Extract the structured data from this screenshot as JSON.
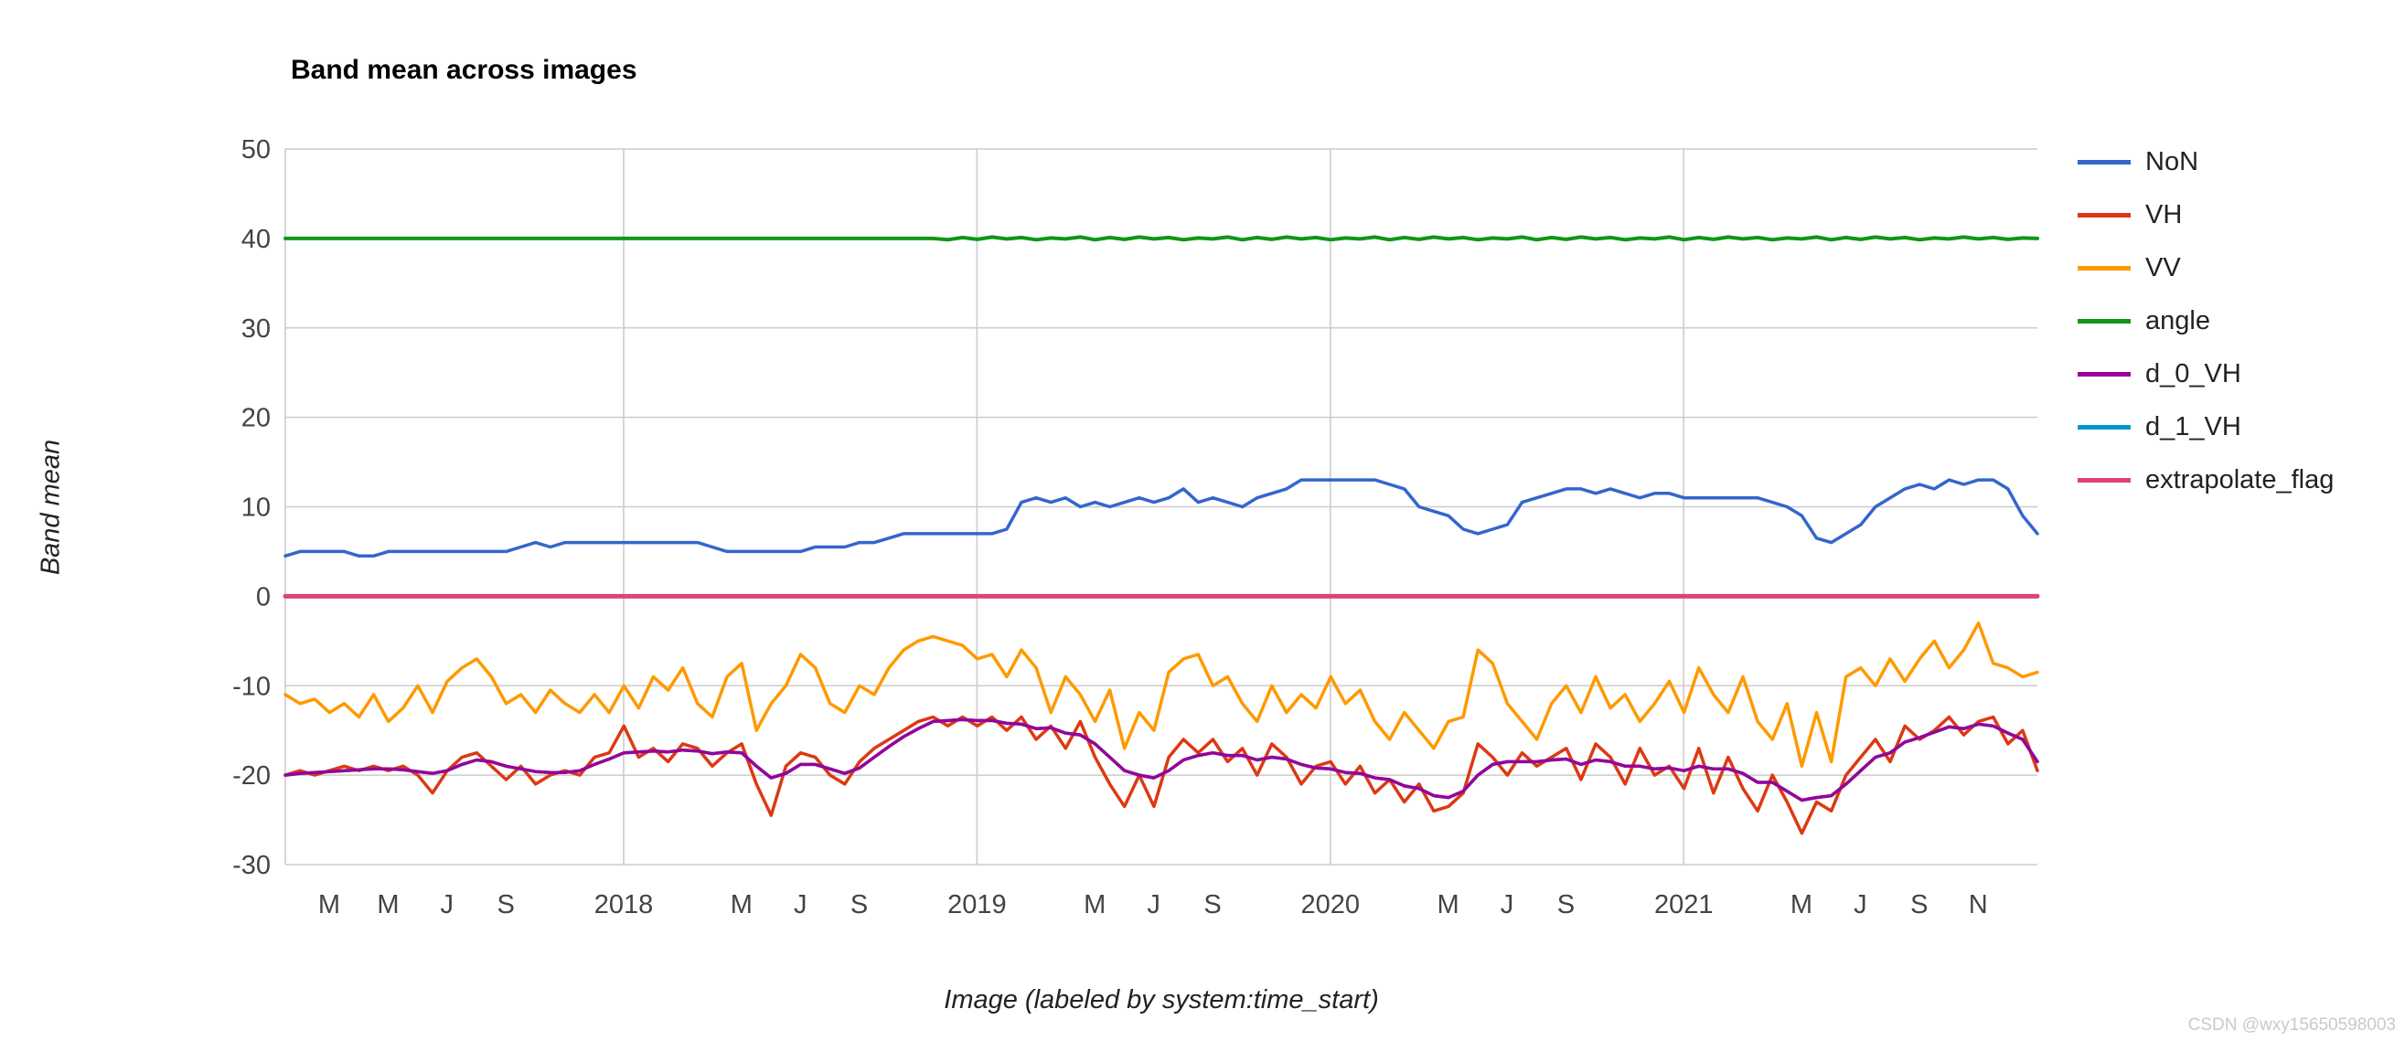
{
  "page": {
    "watermark": "CSDN @wxy15650598003"
  },
  "chart": {
    "title": "Band mean across images",
    "x_axis_title": "Image (labeled by system:time_start)",
    "y_axis_title": "Band mean"
  },
  "legend": {
    "items": [
      {
        "label": "NoN",
        "color": "#3366cc"
      },
      {
        "label": "VH",
        "color": "#dc3912"
      },
      {
        "label": "VV",
        "color": "#ff9900"
      },
      {
        "label": "angle",
        "color": "#109618"
      },
      {
        "label": "d_0_VH",
        "color": "#990099"
      },
      {
        "label": "d_1_VH",
        "color": "#0099c6"
      },
      {
        "label": "extrapolate_flag",
        "color": "#dd4477"
      }
    ]
  },
  "chart_data": {
    "type": "line",
    "title": "Band mean across images",
    "xlabel": "Image (labeled by system:time_start)",
    "ylabel": "Band mean",
    "ylim": [
      -30,
      50
    ],
    "grid": true,
    "legend_position": "right",
    "gridline_color": "#cccccc",
    "y_ticks": [
      50,
      40,
      30,
      20,
      10,
      0,
      -10,
      -20,
      -30
    ],
    "x_ticks": [
      {
        "label": "M"
      },
      {
        "label": "M"
      },
      {
        "label": "J"
      },
      {
        "label": "S"
      },
      {
        "label": ""
      },
      {
        "label": "2018",
        "grid": true
      },
      {
        "label": ""
      },
      {
        "label": "M"
      },
      {
        "label": "J"
      },
      {
        "label": "S"
      },
      {
        "label": ""
      },
      {
        "label": "2019",
        "grid": true
      },
      {
        "label": ""
      },
      {
        "label": "M"
      },
      {
        "label": "J"
      },
      {
        "label": "S"
      },
      {
        "label": ""
      },
      {
        "label": "2020",
        "grid": true
      },
      {
        "label": ""
      },
      {
        "label": "M"
      },
      {
        "label": "J"
      },
      {
        "label": "S"
      },
      {
        "label": ""
      },
      {
        "label": "2021",
        "grid": true
      },
      {
        "label": ""
      },
      {
        "label": "M"
      },
      {
        "label": "J"
      },
      {
        "label": "S"
      },
      {
        "label": "N"
      }
    ],
    "series": [
      {
        "label": "NoN",
        "color": "#3366cc",
        "width": 3.5,
        "z": 1,
        "values": [
          4.5,
          5,
          5,
          5,
          5,
          4.5,
          4.5,
          5,
          5,
          5,
          5,
          5,
          5,
          5,
          5,
          5,
          5.5,
          6,
          5.5,
          6,
          6,
          6,
          6,
          6,
          6,
          6,
          6,
          6,
          6,
          5.5,
          5,
          5,
          5,
          5,
          5,
          5,
          5.5,
          5.5,
          5.5,
          6,
          6,
          6.5,
          7,
          7,
          7,
          7,
          7,
          7,
          7,
          7.5,
          10.5,
          11,
          10.5,
          11,
          10,
          10.5,
          10,
          10.5,
          11,
          10.5,
          11,
          12,
          10.5,
          11,
          10.5,
          10,
          11,
          11.5,
          12,
          13,
          13,
          13,
          13,
          13,
          13,
          12.5,
          12,
          10,
          9.5,
          9,
          7.5,
          7,
          7.5,
          8,
          10.5,
          11,
          11.5,
          12,
          12,
          11.5,
          12,
          11.5,
          11,
          11.5,
          11.5,
          11,
          11,
          11,
          11,
          11,
          11,
          10.5,
          10,
          9,
          6.5,
          6,
          7,
          8,
          10,
          11,
          12,
          12.5,
          12,
          13,
          12.5,
          13,
          13,
          12,
          9,
          7
        ]
      },
      {
        "label": "VH",
        "color": "#dc3912",
        "width": 3.5,
        "z": 2,
        "values": [
          -20,
          -19.5,
          -20,
          -19.5,
          -19,
          -19.5,
          -19,
          -19.5,
          -19,
          -20,
          -22,
          -19.5,
          -18,
          -17.5,
          -19,
          -20.5,
          -19,
          -21,
          -20,
          -19.5,
          -20,
          -18,
          -17.5,
          -14.5,
          -18,
          -17,
          -18.5,
          -16.5,
          -17,
          -19,
          -17.5,
          -16.5,
          -21,
          -24.5,
          -19,
          -17.5,
          -18,
          -20,
          -21,
          -18.5,
          -17,
          -16,
          -15,
          -14,
          -13.5,
          -14.5,
          -13.5,
          -14.5,
          -13.5,
          -15,
          -13.5,
          -16,
          -14.5,
          -17,
          -14,
          -18,
          -21,
          -23.5,
          -20,
          -23.5,
          -18,
          -16,
          -17.5,
          -16,
          -18.5,
          -17,
          -20,
          -16.5,
          -18,
          -21,
          -19,
          -18.5,
          -21,
          -19,
          -22,
          -20.5,
          -23,
          -21,
          -24,
          -23.5,
          -22,
          -16.5,
          -18,
          -20,
          -17.5,
          -19,
          -18,
          -17,
          -20.5,
          -16.5,
          -18,
          -21,
          -17,
          -20,
          -19,
          -21.5,
          -17,
          -22,
          -18,
          -21.5,
          -24,
          -20,
          -23,
          -26.5,
          -23,
          -24,
          -20,
          -18,
          -16,
          -18.5,
          -14.5,
          -16,
          -15,
          -13.5,
          -15.5,
          -14,
          -13.5,
          -16.5,
          -15,
          -19.5
        ]
      },
      {
        "label": "VV",
        "color": "#ff9900",
        "width": 3.5,
        "z": 3,
        "values": [
          -11,
          -12,
          -11.5,
          -13,
          -12,
          -13.5,
          -11,
          -14,
          -12.5,
          -10,
          -13,
          -9.5,
          -8,
          -7,
          -9,
          -12,
          -11,
          -13,
          -10.5,
          -12,
          -13,
          -11,
          -13,
          -10,
          -12.5,
          -9,
          -10.5,
          -8,
          -12,
          -13.5,
          -9,
          -7.5,
          -15,
          -12,
          -10,
          -6.5,
          -8,
          -12,
          -13,
          -10,
          -11,
          -8,
          -6,
          -5,
          -4.5,
          -5,
          -5.5,
          -7,
          -6.5,
          -9,
          -6,
          -8,
          -13,
          -9,
          -11,
          -14,
          -10.5,
          -17,
          -13,
          -15,
          -8.5,
          -7,
          -6.5,
          -10,
          -9,
          -12,
          -14,
          -10,
          -13,
          -11,
          -12.5,
          -9,
          -12,
          -10.5,
          -14,
          -16,
          -13,
          -15,
          -17,
          -14,
          -13.5,
          -6,
          -7.5,
          -12,
          -14,
          -16,
          -12,
          -10,
          -13,
          -9,
          -12.5,
          -11,
          -14,
          -12,
          -9.5,
          -13,
          -8,
          -11,
          -13,
          -9,
          -14,
          -16,
          -12,
          -19,
          -13,
          -18.5,
          -9,
          -8,
          -10,
          -7,
          -9.5,
          -7,
          -5,
          -8,
          -6,
          -3,
          -7.5,
          -8,
          -9,
          -8.5
        ]
      },
      {
        "label": "angle",
        "color": "#109618",
        "width": 4,
        "z": 4,
        "values": [
          40,
          40,
          40,
          40,
          40,
          40,
          40,
          40,
          40,
          40,
          40,
          40,
          40,
          40,
          40,
          40,
          40,
          40,
          40,
          40,
          40,
          40,
          40,
          40,
          40,
          40,
          40,
          40,
          40,
          40,
          40,
          40,
          40,
          40,
          40,
          40,
          40,
          40,
          40,
          40,
          40,
          40,
          40,
          40,
          40,
          39.85,
          40.1,
          39.9,
          40.15,
          39.95,
          40.1,
          39.85,
          40.05,
          39.95,
          40.15,
          39.85,
          40.1,
          39.9,
          40.15,
          39.95,
          40.1,
          39.85,
          40.05,
          39.95,
          40.15,
          39.85,
          40.1,
          39.9,
          40.15,
          39.95,
          40.1,
          39.85,
          40.05,
          39.95,
          40.15,
          39.85,
          40.1,
          39.9,
          40.15,
          39.95,
          40.1,
          39.85,
          40.05,
          39.95,
          40.15,
          39.85,
          40.1,
          39.9,
          40.15,
          39.95,
          40.1,
          39.85,
          40.05,
          39.95,
          40.15,
          39.85,
          40.1,
          39.9,
          40.15,
          39.95,
          40.1,
          39.85,
          40.05,
          39.95,
          40.15,
          39.85,
          40.1,
          39.9,
          40.15,
          39.95,
          40.1,
          39.85,
          40.05,
          39.95,
          40.15,
          39.95,
          40.1,
          39.9,
          40.05,
          40
        ]
      },
      {
        "label": "d_0_VH",
        "color": "#990099",
        "width": 3.5,
        "z": 6,
        "values": [
          -20,
          -19.8,
          -19.7,
          -19.6,
          -19.5,
          -19.4,
          -19.3,
          -19.3,
          -19.4,
          -19.6,
          -19.8,
          -19.5,
          -18.8,
          -18.3,
          -18.5,
          -19,
          -19.3,
          -19.6,
          -19.7,
          -19.7,
          -19.5,
          -18.8,
          -18.2,
          -17.5,
          -17.4,
          -17.3,
          -17.4,
          -17.2,
          -17.3,
          -17.6,
          -17.4,
          -17.5,
          -19,
          -20.3,
          -19.8,
          -18.8,
          -18.8,
          -19.3,
          -19.8,
          -19.2,
          -18,
          -16.8,
          -15.7,
          -14.8,
          -14,
          -13.9,
          -13.8,
          -13.9,
          -13.9,
          -14.2,
          -14.3,
          -14.8,
          -14.7,
          -15.3,
          -15.5,
          -16.5,
          -18,
          -19.5,
          -20,
          -20.3,
          -19.5,
          -18.3,
          -17.8,
          -17.5,
          -17.8,
          -17.8,
          -18.3,
          -18,
          -18.2,
          -18.8,
          -19.2,
          -19.3,
          -19.7,
          -19.8,
          -20.3,
          -20.5,
          -21.2,
          -21.5,
          -22.3,
          -22.5,
          -21.8,
          -20,
          -18.8,
          -18.5,
          -18.5,
          -18.5,
          -18.3,
          -18.2,
          -18.8,
          -18.3,
          -18.5,
          -19,
          -19,
          -19.3,
          -19.2,
          -19.5,
          -19,
          -19.3,
          -19.3,
          -19.8,
          -20.8,
          -20.8,
          -21.8,
          -22.8,
          -22.5,
          -22.3,
          -21,
          -19.5,
          -18,
          -17.5,
          -16.3,
          -15.8,
          -15.2,
          -14.6,
          -14.8,
          -14.3,
          -14.5,
          -15.3,
          -16,
          -18.5
        ]
      },
      {
        "label": "d_1_VH",
        "color": "#0099c6",
        "width": 3.5,
        "z": 5,
        "values": [
          -20,
          -19.8,
          -19.7,
          -19.6,
          -19.5,
          -19.4,
          -19.3,
          -19.3,
          -19.4,
          -19.6,
          -19.8,
          -19.5,
          -18.8,
          -18.3,
          -18.5,
          -19,
          -19.3,
          -19.6,
          -19.7,
          -19.7,
          -19.5,
          -18.8,
          -18.2,
          -17.5,
          -17.4,
          -17.3,
          -17.4,
          -17.2,
          -17.3,
          -17.6,
          -17.4,
          -17.5,
          -19,
          -20.3,
          -19.8,
          -18.8,
          -18.8,
          -19.3,
          -19.8,
          -19.2,
          -18,
          -16.8,
          -15.7,
          -14.8,
          -14,
          -13.9,
          -13.8,
          -13.9,
          -13.9,
          -14.2,
          -14.3,
          -14.8,
          -14.7,
          -15.3,
          -15.5,
          -16.5,
          -18,
          -19.5,
          -20,
          -20.3,
          -19.5,
          -18.3,
          -17.8,
          -17.5,
          -17.8,
          -17.8,
          -18.3,
          -18,
          -18.2,
          -18.8,
          -19.2,
          -19.3,
          -19.7,
          -19.8,
          -20.3,
          -20.5,
          -21.2,
          -21.5,
          -22.3,
          -22.5,
          -21.8,
          -20,
          -18.8,
          -18.5,
          -18.5,
          -18.5,
          -18.3,
          -18.2,
          -18.8,
          -18.3,
          -18.5,
          -19,
          -19,
          -19.3,
          -19.2,
          -19.5,
          -19,
          -19.3,
          -19.3,
          -19.8,
          -20.8,
          -20.8,
          -21.8,
          -22.8,
          -22.5,
          -22.3,
          -21,
          -19.5,
          -18,
          -17.5,
          -16.3,
          -15.8,
          -15.2,
          -14.6,
          -14.8,
          -14.3,
          -14.5,
          -15.3,
          -16,
          -18.5
        ]
      },
      {
        "label": "extrapolate_flag",
        "color": "#dd4477",
        "width": 5,
        "z": 7,
        "constant": 0
      }
    ]
  }
}
